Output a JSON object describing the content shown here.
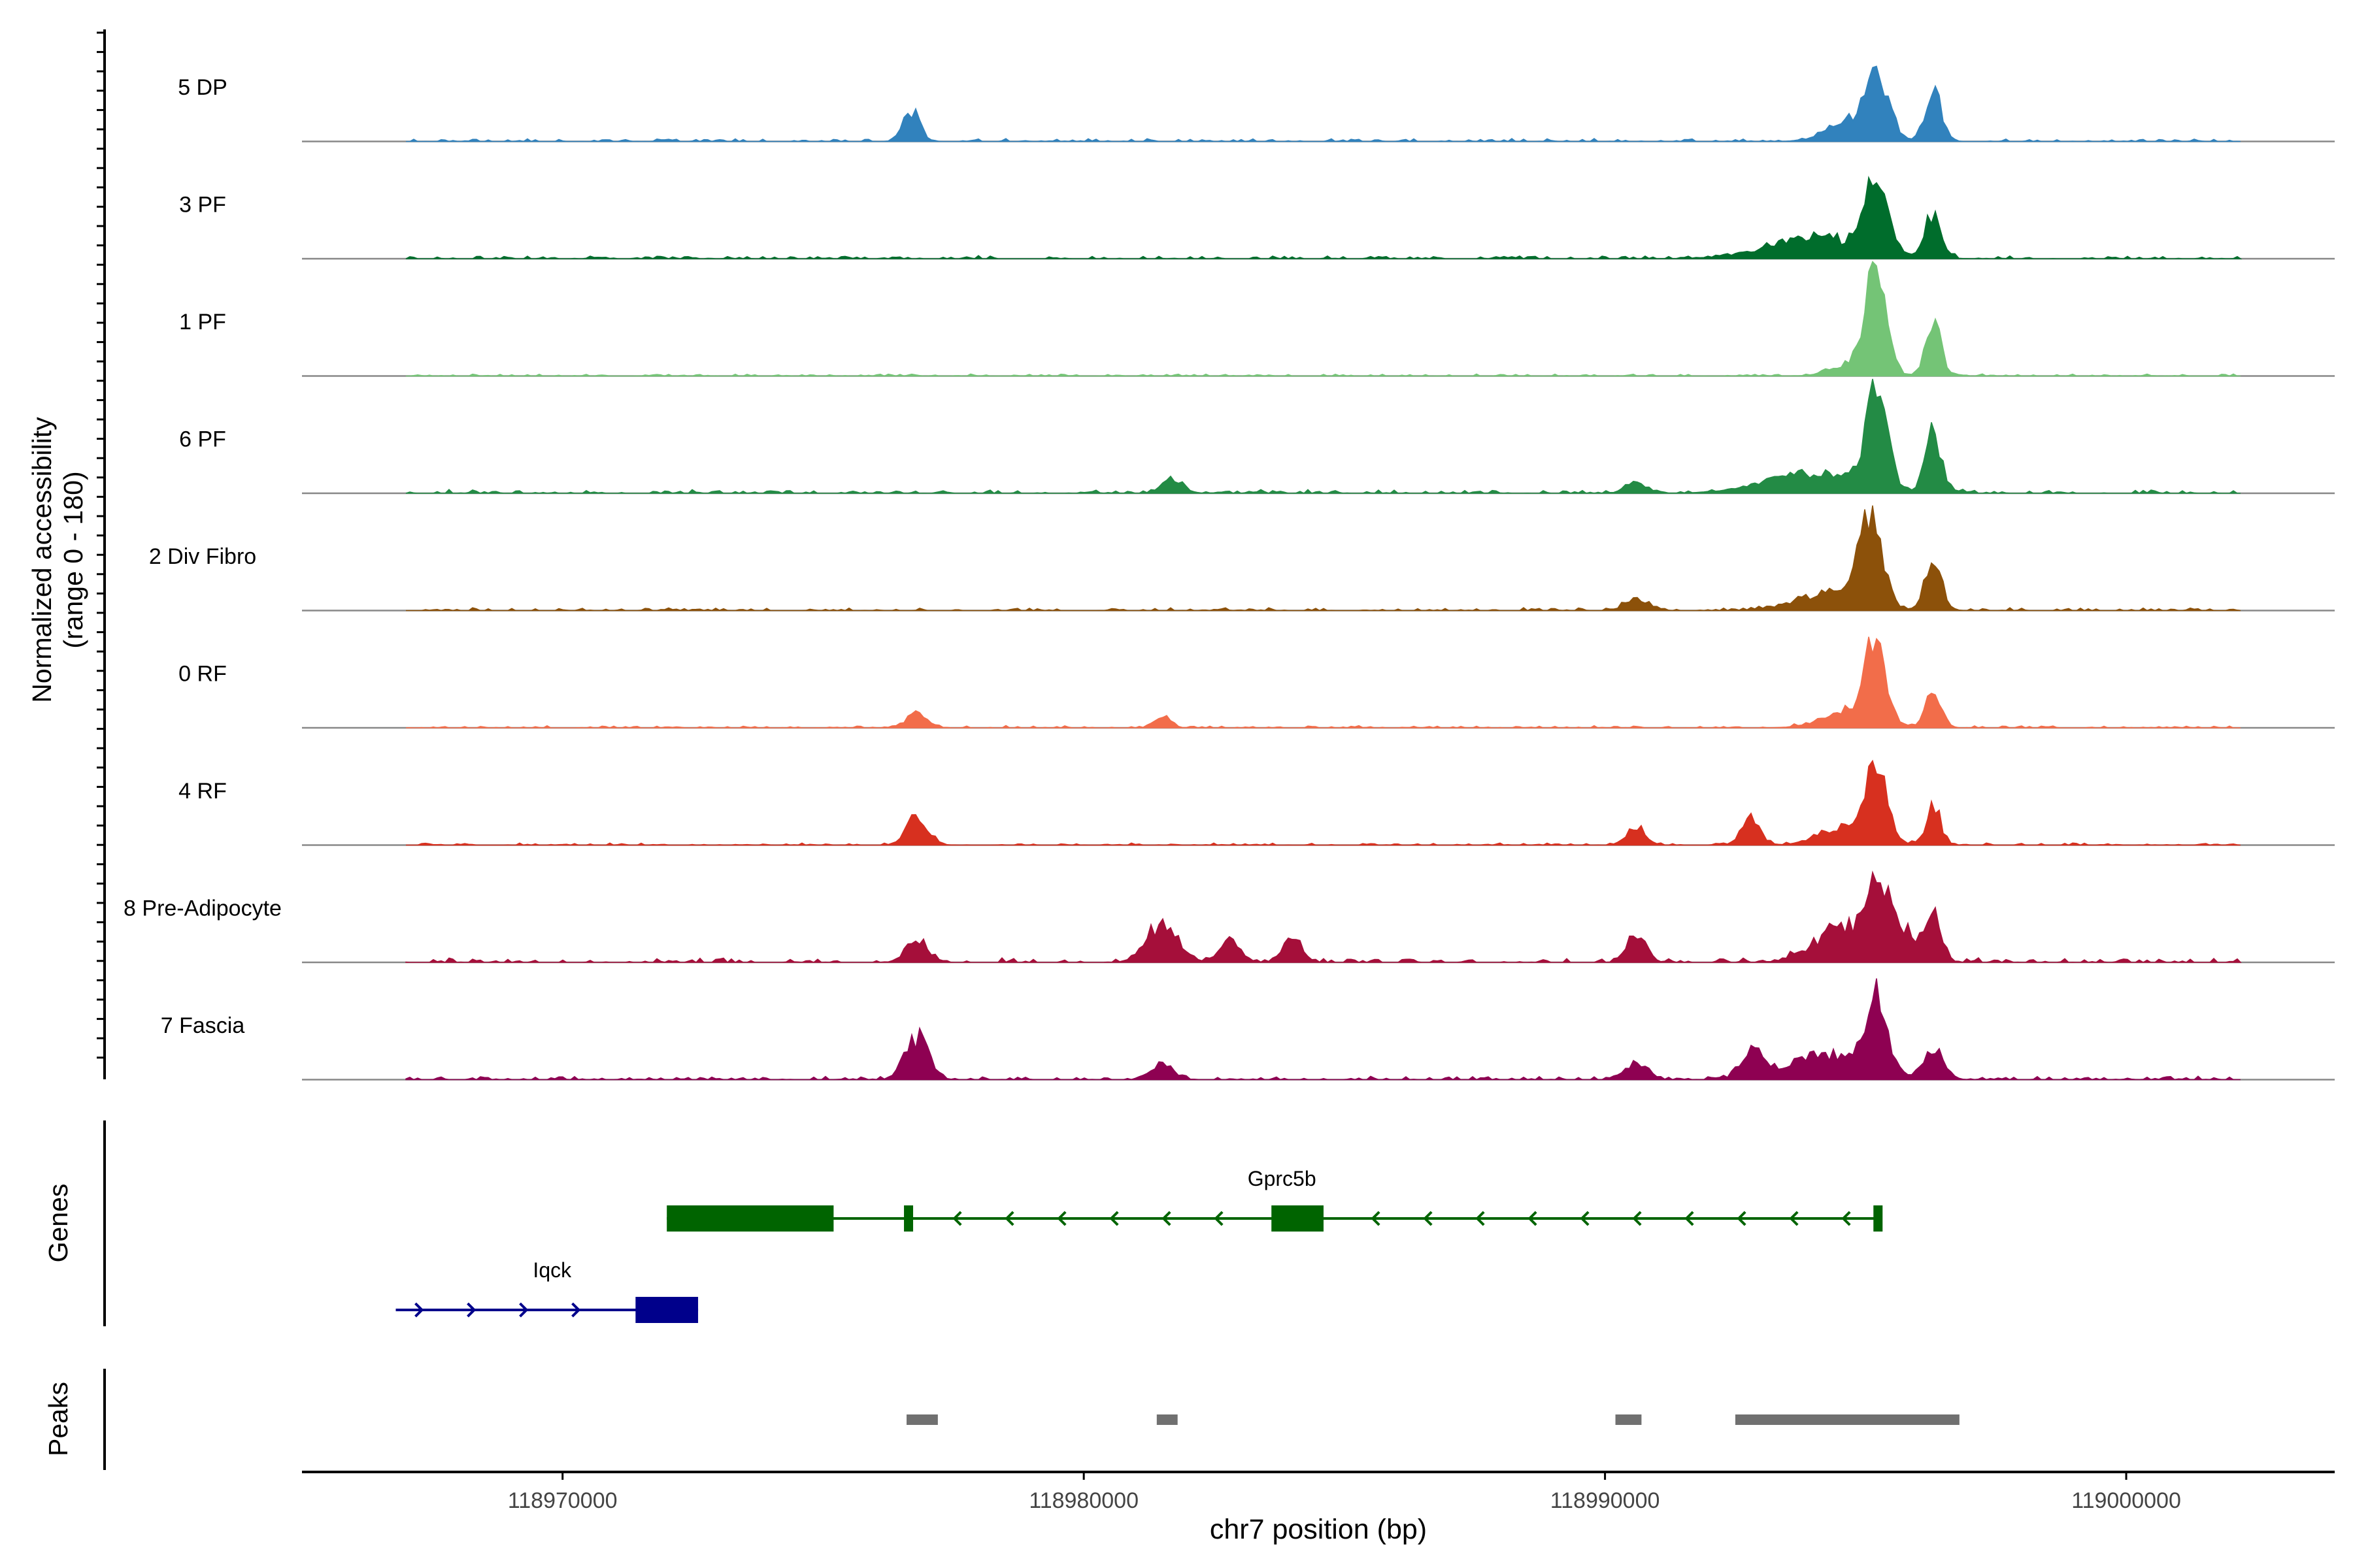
{
  "chart_data": {
    "type": "area",
    "title": "",
    "ylabel_line1": "Normalized accessibility",
    "ylabel_line2": "(range 0 - 180)",
    "ylim": [
      0,
      180
    ],
    "xlabel": "chr7 position (bp)",
    "xlim": [
      118965000,
      119004000
    ],
    "xticks": [
      118970000,
      118980000,
      118990000,
      119000000
    ],
    "xtick_labels": [
      "118970000",
      "118980000",
      "118990000",
      "119000000"
    ],
    "track_start": 118967000,
    "track_end": 119002200,
    "tracks": [
      {
        "name": "5 DP",
        "color": "#3182bd",
        "noise": 4,
        "peaks": [
          [
            118976700,
            45,
            160
          ],
          [
            118994600,
            25,
            400
          ],
          [
            118995200,
            100,
            240
          ],
          [
            118996300,
            75,
            160
          ]
        ]
      },
      {
        "name": "3 PF",
        "color": "#006d2c",
        "noise": 4,
        "peaks": [
          [
            118994000,
            32,
            900
          ],
          [
            118995200,
            125,
            220
          ],
          [
            118996300,
            70,
            160
          ]
        ]
      },
      {
        "name": "1 PF",
        "color": "#74c476",
        "noise": 3,
        "peaks": [
          [
            118994800,
            22,
            400
          ],
          [
            118995200,
            165,
            190
          ],
          [
            118996300,
            80,
            150
          ]
        ]
      },
      {
        "name": "6 PF",
        "color": "#238b45",
        "noise": 5,
        "peaks": [
          [
            118981700,
            22,
            200
          ],
          [
            118990600,
            16,
            200
          ],
          [
            118994000,
            30,
            900
          ],
          [
            118995200,
            145,
            210
          ],
          [
            118996300,
            95,
            150
          ]
        ]
      },
      {
        "name": "2 Div Fibro",
        "color": "#8c510a",
        "noise": 4,
        "peaks": [
          [
            118990600,
            20,
            200
          ],
          [
            118994200,
            25,
            600
          ],
          [
            118995100,
            135,
            230
          ],
          [
            118996300,
            80,
            160
          ]
        ]
      },
      {
        "name": "0 RF",
        "color": "#f26d4a",
        "noise": 3,
        "peaks": [
          [
            118976800,
            22,
            200
          ],
          [
            118981500,
            18,
            150
          ],
          [
            118994700,
            28,
            500
          ],
          [
            118995200,
            120,
            190
          ],
          [
            118996300,
            55,
            150
          ]
        ]
      },
      {
        "name": "4 RF",
        "color": "#d7301f",
        "noise": 3,
        "peaks": [
          [
            118976800,
            45,
            200
          ],
          [
            118990600,
            28,
            180
          ],
          [
            118992800,
            40,
            180
          ],
          [
            118994700,
            30,
            500
          ],
          [
            118995200,
            102,
            200
          ],
          [
            118996300,
            60,
            140
          ]
        ]
      },
      {
        "name": "8 Pre-Adipocyte",
        "color": "#a50f3a",
        "noise": 6,
        "peaks": [
          [
            118976800,
            38,
            200
          ],
          [
            118981500,
            60,
            300
          ],
          [
            118982800,
            35,
            200
          ],
          [
            118984000,
            35,
            180
          ],
          [
            118990600,
            45,
            180
          ],
          [
            118994500,
            50,
            500
          ],
          [
            118995200,
            110,
            230
          ],
          [
            118995700,
            48,
            300
          ],
          [
            118996300,
            70,
            150
          ]
        ]
      },
      {
        "name": "7 Fascia",
        "color": "#8e0152",
        "noise": 5,
        "peaks": [
          [
            118976800,
            65,
            220
          ],
          [
            118981500,
            25,
            200
          ],
          [
            118990600,
            28,
            200
          ],
          [
            118992800,
            45,
            200
          ],
          [
            118994300,
            40,
            700
          ],
          [
            118995200,
            115,
            200
          ],
          [
            118996300,
            48,
            200
          ]
        ]
      }
    ],
    "genes_label": "Genes",
    "genes": [
      {
        "name": "Gprc5b",
        "color": "#006400",
        "strand": "-",
        "start": 118972000,
        "end": 118995300,
        "exons": [
          [
            118972000,
            118975200
          ],
          [
            118976550,
            118976700
          ],
          [
            118983600,
            118984600
          ],
          [
            118995150,
            118995300
          ]
        ]
      },
      {
        "name": "Iqck",
        "color": "#00008b",
        "strand": "+",
        "start": 118966800,
        "end": 118972600,
        "exons": [
          [
            118971400,
            118972600
          ]
        ]
      }
    ],
    "peaks_label": "Peaks",
    "peak_color": "#707070",
    "peak_regions": [
      [
        118976600,
        118977200
      ],
      [
        118981400,
        118981800
      ],
      [
        118990200,
        118990700
      ],
      [
        118992500,
        118996800
      ]
    ]
  }
}
